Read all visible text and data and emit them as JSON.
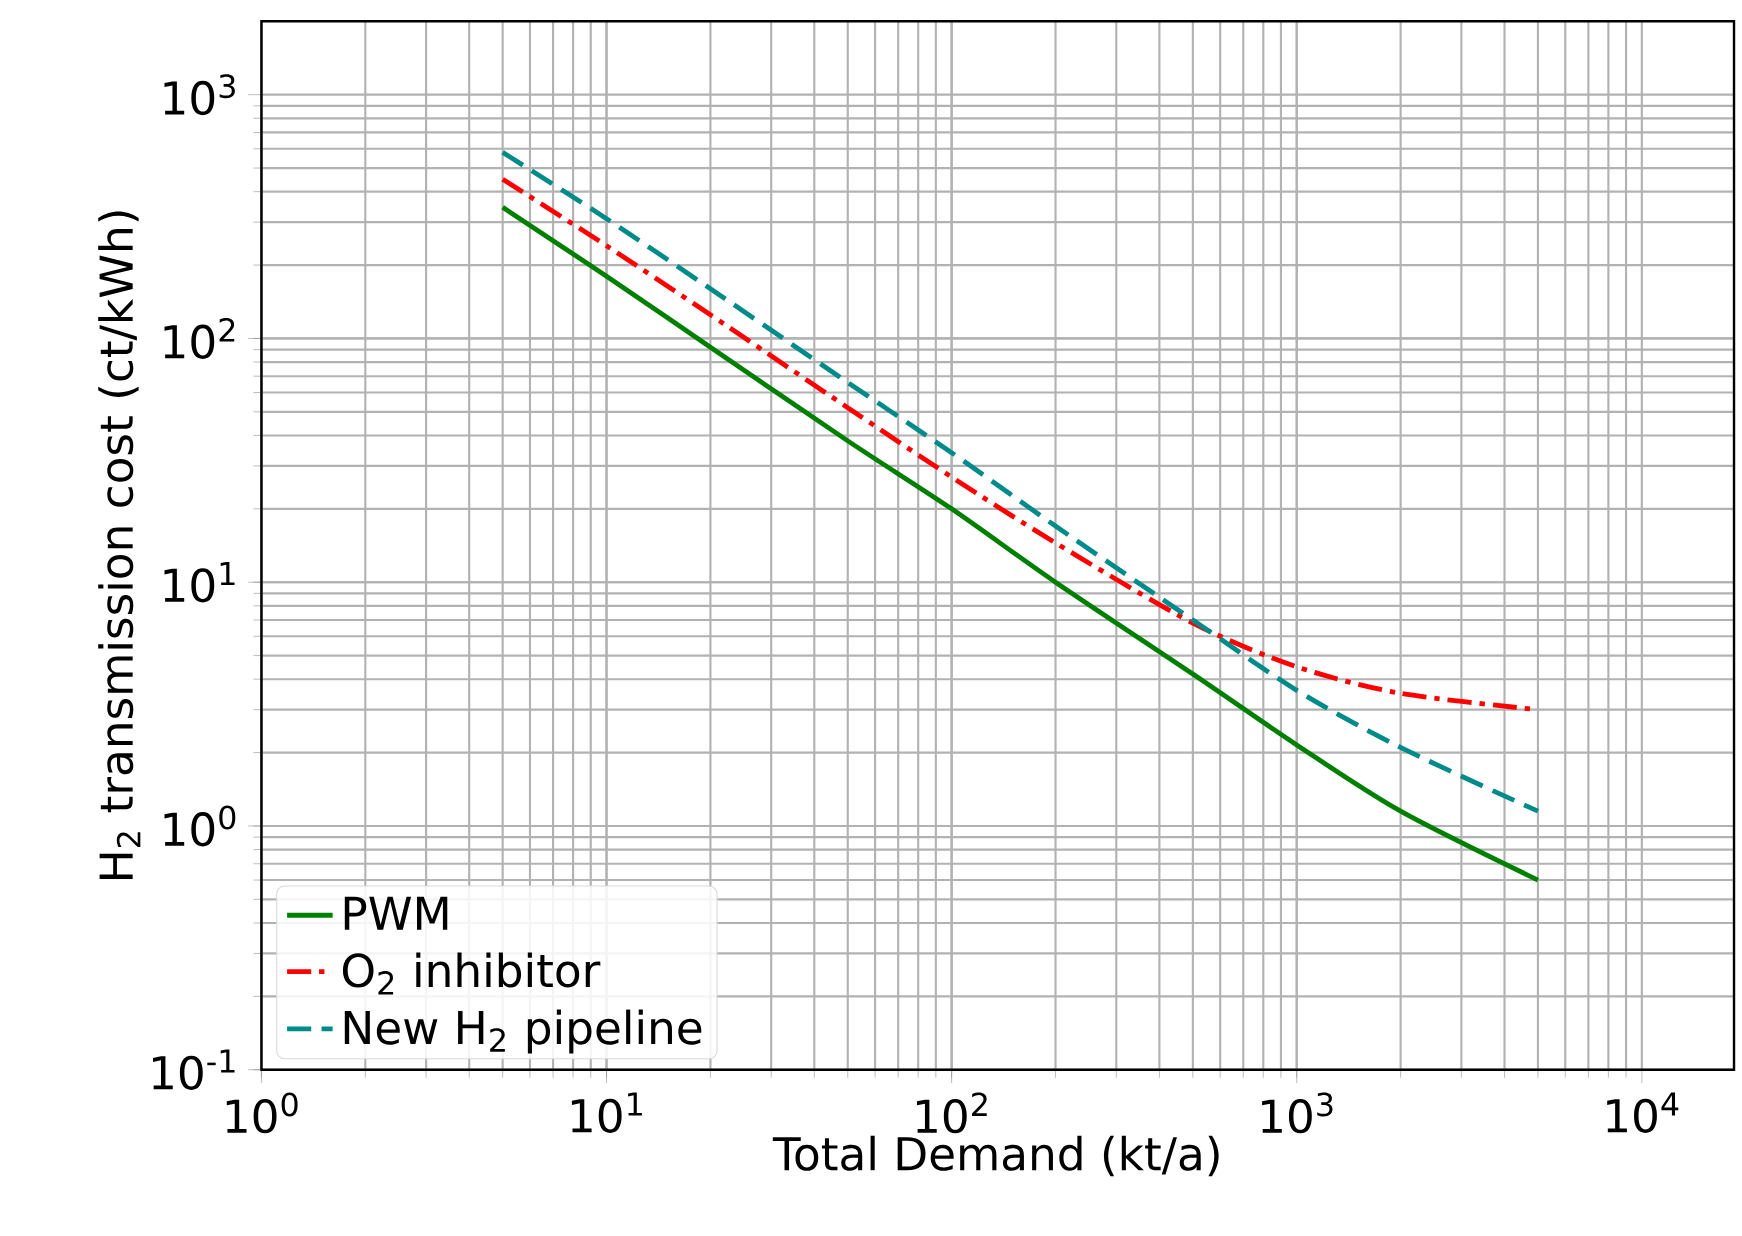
{
  "chart_data": {
    "type": "line",
    "xlabel": "Total Demand (kt/a)",
    "ylabel": "H$_{2}$ transmission cost (ct/kWh)",
    "log": "xy",
    "grid": true,
    "legend": "bottom left",
    "xlim": [
      1,
      18500
    ],
    "ylim": [
      0.1,
      2000
    ],
    "xticks": [
      {
        "value": 1,
        "label": "10$^{0}$"
      },
      {
        "value": 10,
        "label": "10$^{1}$"
      },
      {
        "value": 100,
        "label": "10$^{2}$"
      },
      {
        "value": 1000,
        "label": "10$^{3}$"
      },
      {
        "value": 10000,
        "label": "10$^{4}$"
      }
    ],
    "yticks": [
      {
        "value": 0.1,
        "label": "10$^{-1}$"
      },
      {
        "value": 1,
        "label": "10$^{0}$"
      },
      {
        "value": 10,
        "label": "10$^{1}$"
      },
      {
        "value": 100,
        "label": "10$^{2}$"
      },
      {
        "value": 1000,
        "label": "10$^{3}$"
      }
    ],
    "x": [
      5,
      10,
      20,
      50,
      100,
      200,
      500,
      1000,
      2000,
      5000
    ],
    "series": [
      {
        "name": "PWM",
        "color": "#008000",
        "line_style": "solid",
        "values": [
          345,
          180,
          92,
          38,
          20,
          10,
          4.2,
          2.15,
          1.15,
          0.6
        ]
      },
      {
        "name": "O$_{2}$ inhibitor",
        "color": "#ff0000",
        "line_style": "dashdot",
        "values": [
          450,
          240,
          125,
          52,
          27,
          14.5,
          6.8,
          4.5,
          3.5,
          3.0
        ]
      },
      {
        "name": "New H$_{2}$ pipeline",
        "color": "#008b8b",
        "line_style": "dashed",
        "values": [
          580,
          310,
          160,
          66,
          34,
          17,
          7,
          3.6,
          2.1,
          1.15
        ]
      }
    ]
  }
}
